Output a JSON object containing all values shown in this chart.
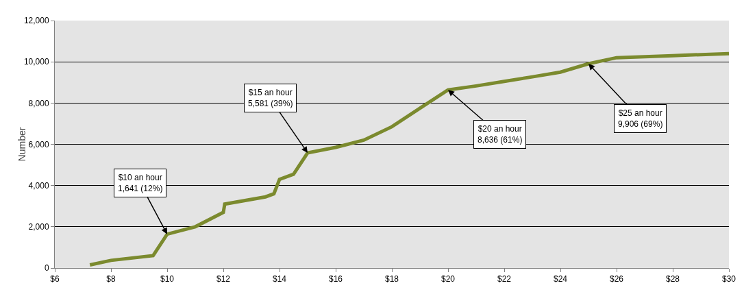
{
  "chart_data": {
    "type": "line",
    "ylabel": "Number",
    "x": [
      7.25,
      8,
      9.5,
      10,
      11,
      12,
      12.05,
      13.5,
      13.8,
      14,
      14.5,
      15,
      16,
      17,
      18,
      19,
      20,
      21,
      22,
      23,
      24,
      25,
      26,
      28,
      30
    ],
    "series": [
      {
        "color": "#7b8a2e",
        "values": [
          150,
          370,
          600,
          1641,
          2000,
          2700,
          3100,
          3450,
          3600,
          4300,
          4550,
          5581,
          5850,
          6200,
          6850,
          7750,
          8636,
          8830,
          9050,
          9270,
          9500,
          9906,
          10200,
          10300,
          10400
        ]
      }
    ],
    "xlim": [
      6,
      30
    ],
    "xticks": [
      {
        "value": 6,
        "label": "$6"
      },
      {
        "value": 8,
        "label": "$8"
      },
      {
        "value": 10,
        "label": "$10"
      },
      {
        "value": 12,
        "label": "$12"
      },
      {
        "value": 14,
        "label": "$14"
      },
      {
        "value": 16,
        "label": "$16"
      },
      {
        "value": 18,
        "label": "$18"
      },
      {
        "value": 20,
        "label": "$20"
      },
      {
        "value": 22,
        "label": "$22"
      },
      {
        "value": 24,
        "label": "$24"
      },
      {
        "value": 26,
        "label": "$26"
      },
      {
        "value": 28,
        "label": "$28"
      },
      {
        "value": 30,
        "label": "$30"
      }
    ],
    "ylim": [
      0,
      12000
    ],
    "yticks": [
      0,
      {
        "value": 2000,
        "label": "2,000"
      },
      {
        "value": 4000,
        "label": "4,000"
      },
      {
        "value": 6000,
        "label": "6,000"
      },
      {
        "value": 8000,
        "label": "8,000"
      },
      {
        "value": 10000,
        "label": "10,000"
      },
      {
        "value": 12000,
        "label": "12,000"
      }
    ],
    "grid": "y",
    "marker": "none",
    "line_style": "solid",
    "annotations": [
      {
        "text": "$10 an hour\n1,641 (12%)",
        "x": 10,
        "y": 1641
      },
      {
        "text": "$15 an hour\n5,581 (39%)",
        "x": 15,
        "y": 5581
      },
      {
        "text": "$20 an hour\n8,636 (61%)",
        "x": 20,
        "y": 8636
      },
      {
        "text": "$25 an hour\n9,906 (69%)",
        "x": 25,
        "y": 9906
      }
    ]
  }
}
